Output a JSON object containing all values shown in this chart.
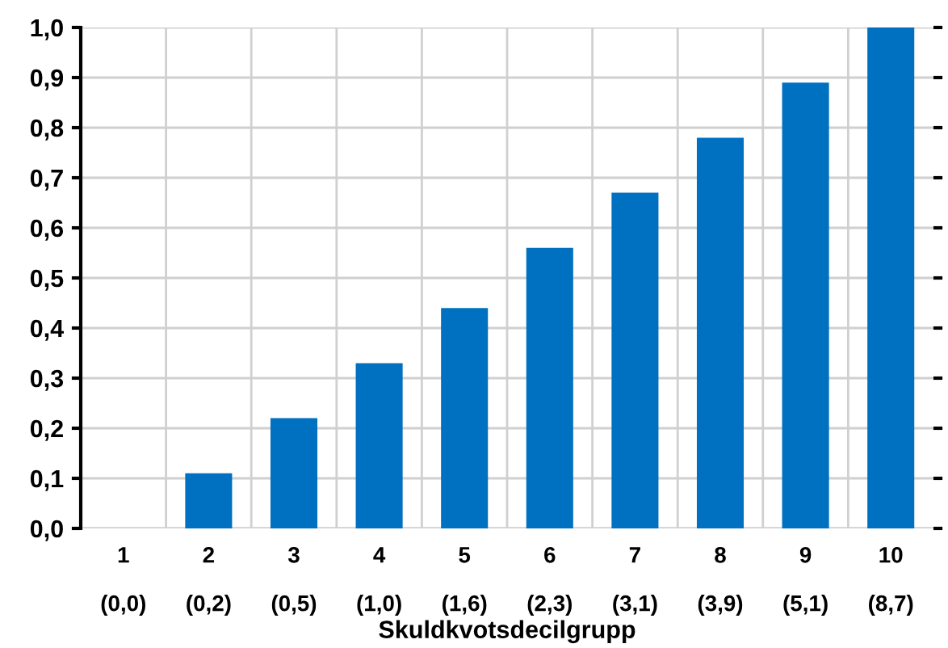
{
  "chart_data": {
    "type": "bar",
    "xlabel": "Skuldkvotsdecilgrupp",
    "categories": [
      "1\n\n(0,0)",
      "2\n\n(0,2)",
      "3\n\n(0,5)",
      "4\n\n(1,0)",
      "5\n\n(1,6)",
      "6\n\n(2,3)",
      "7\n\n(3,1)",
      "8\n\n(3,9)",
      "9\n\n(5,1)",
      "10\n\n(8,7)"
    ],
    "values": [
      0,
      0.11,
      0.22,
      0.33,
      0.44,
      0.56,
      0.67,
      0.78,
      0.89,
      1.0
    ],
    "color": "#0070c0",
    "ylim": [
      0,
      1.0
    ],
    "yticks": [
      {
        "value": 0,
        "label": "0,0"
      },
      {
        "value": 0.1,
        "label": "0,1"
      },
      {
        "value": 0.2,
        "label": "0,2"
      },
      {
        "value": 0.3,
        "label": "0,3"
      },
      {
        "value": 0.4,
        "label": "0,4"
      },
      {
        "value": 0.5,
        "label": "0,5"
      },
      {
        "value": 0.6,
        "label": "0,6"
      },
      {
        "value": 0.7,
        "label": "0,7"
      },
      {
        "value": 0.8,
        "label": "0,8"
      },
      {
        "value": 0.9,
        "label": "0,9"
      },
      {
        "value": 1.0,
        "label": "1,0"
      }
    ],
    "grid": true
  }
}
